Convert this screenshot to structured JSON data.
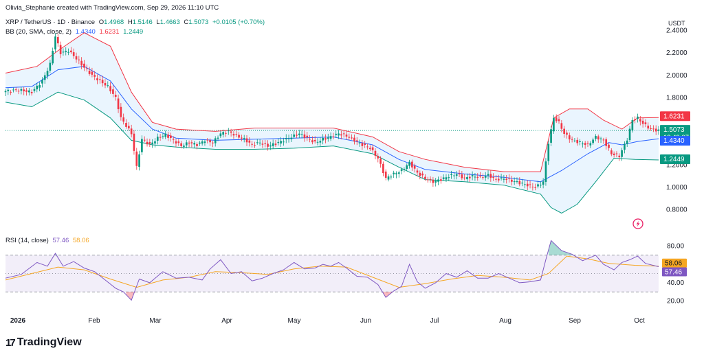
{
  "header": {
    "credit": "Olivia_Stephanie created with TradingView.com, Sep 29, 2026 11:10 UTC",
    "symbol": "XRP / TetherUS · 1D · Binance",
    "o_label": "O",
    "o": "1.4968",
    "h_label": "H",
    "h": "1.5146",
    "l_label": "L",
    "l": "1.4663",
    "c_label": "C",
    "c": "1.5073",
    "change": "+0.0105 (+0.70%)",
    "bb_label": "BB (20, SMA, close, 2)",
    "bb_basis": "1.4340",
    "bb_upper": "1.6231",
    "bb_lower": "1.2449",
    "rsi_label": "RSI (14, close)",
    "rsi_value": "57.46",
    "rsi_ma": "58.06"
  },
  "currency": "USDT",
  "brand": "TradingView",
  "colors": {
    "up": "#089981",
    "down": "#f23645",
    "basis": "#2962ff",
    "upper": "#f23645",
    "lower": "#089981",
    "rsi": "#7e57c2",
    "rsi_ma": "#f5a623"
  },
  "chart_data": [
    {
      "type": "candlestick",
      "title": "XRP / TetherUS · 1D · Binance",
      "ylim": [
        0.62,
        2.55
      ],
      "y_ticks": [
        "2.4000",
        "2.2000",
        "2.0000",
        "1.8000",
        "1.2000",
        "1.0000",
        "0.8000"
      ],
      "x_ticks": [
        "2026",
        "Feb",
        "Mar",
        "Apr",
        "May",
        "Jun",
        "Jul",
        "Aug",
        "Sep",
        "Oct"
      ],
      "price_labels": {
        "upper": "1.6231",
        "close": "1.5073",
        "countdown": "12:49:07",
        "basis": "1.4340",
        "lower": "1.2449"
      },
      "close_path": [
        [
          0,
          1.86
        ],
        [
          5,
          1.87
        ],
        [
          10,
          1.85
        ],
        [
          14,
          1.95
        ],
        [
          17,
          2.1
        ],
        [
          19,
          2.35
        ],
        [
          21,
          2.2
        ],
        [
          24,
          2.22
        ],
        [
          27,
          2.15
        ],
        [
          30,
          2.07
        ],
        [
          33,
          2.0
        ],
        [
          36,
          1.95
        ],
        [
          39,
          1.9
        ],
        [
          42,
          1.8
        ],
        [
          44,
          1.62
        ],
        [
          46,
          1.55
        ],
        [
          48,
          1.48
        ],
        [
          50,
          1.18
        ],
        [
          52,
          1.43
        ],
        [
          55,
          1.38
        ],
        [
          58,
          1.44
        ],
        [
          61,
          1.47
        ],
        [
          64,
          1.42
        ],
        [
          67,
          1.37
        ],
        [
          70,
          1.4
        ],
        [
          73,
          1.38
        ],
        [
          76,
          1.42
        ],
        [
          79,
          1.4
        ],
        [
          82,
          1.48
        ],
        [
          85,
          1.5
        ],
        [
          88,
          1.46
        ],
        [
          91,
          1.43
        ],
        [
          94,
          1.38
        ],
        [
          97,
          1.4
        ],
        [
          100,
          1.37
        ],
        [
          103,
          1.39
        ],
        [
          106,
          1.42
        ],
        [
          109,
          1.45
        ],
        [
          112,
          1.48
        ],
        [
          115,
          1.44
        ],
        [
          118,
          1.4
        ],
        [
          121,
          1.43
        ],
        [
          124,
          1.45
        ],
        [
          127,
          1.48
        ],
        [
          130,
          1.46
        ],
        [
          133,
          1.42
        ],
        [
          136,
          1.38
        ],
        [
          139,
          1.35
        ],
        [
          142,
          1.26
        ],
        [
          145,
          1.08
        ],
        [
          148,
          1.12
        ],
        [
          151,
          1.15
        ],
        [
          154,
          1.22
        ],
        [
          157,
          1.13
        ],
        [
          160,
          1.08
        ],
        [
          163,
          1.05
        ],
        [
          166,
          1.07
        ],
        [
          169,
          1.1
        ],
        [
          172,
          1.12
        ],
        [
          175,
          1.08
        ],
        [
          178,
          1.1
        ],
        [
          181,
          1.09
        ],
        [
          184,
          1.11
        ],
        [
          187,
          1.07
        ],
        [
          190,
          1.08
        ],
        [
          193,
          1.06
        ],
        [
          196,
          1.04
        ],
        [
          199,
          1.02
        ],
        [
          202,
          1.0
        ],
        [
          205,
          1.05
        ],
        [
          207,
          1.4
        ],
        [
          209,
          1.62
        ],
        [
          211,
          1.58
        ],
        [
          213,
          1.48
        ],
        [
          216,
          1.42
        ],
        [
          219,
          1.4
        ],
        [
          222,
          1.38
        ],
        [
          225,
          1.45
        ],
        [
          228,
          1.42
        ],
        [
          231,
          1.3
        ],
        [
          234,
          1.28
        ],
        [
          237,
          1.43
        ],
        [
          239,
          1.6
        ],
        [
          241,
          1.62
        ],
        [
          243,
          1.57
        ],
        [
          246,
          1.52
        ],
        [
          249,
          1.507
        ]
      ],
      "series": [
        {
          "name": "BB upper",
          "values": [
            [
              0,
              2.02
            ],
            [
              12,
              2.08
            ],
            [
              20,
              2.22
            ],
            [
              30,
              2.38
            ],
            [
              40,
              2.26
            ],
            [
              48,
              1.85
            ],
            [
              56,
              1.58
            ],
            [
              65,
              1.52
            ],
            [
              80,
              1.5
            ],
            [
              95,
              1.53
            ],
            [
              110,
              1.53
            ],
            [
              125,
              1.53
            ],
            [
              140,
              1.45
            ],
            [
              150,
              1.32
            ],
            [
              160,
              1.25
            ],
            [
              175,
              1.18
            ],
            [
              190,
              1.14
            ],
            [
              204,
              1.14
            ],
            [
              209,
              1.62
            ],
            [
              215,
              1.7
            ],
            [
              222,
              1.7
            ],
            [
              228,
              1.6
            ],
            [
              235,
              1.52
            ],
            [
              241,
              1.62
            ],
            [
              249,
              1.6231
            ]
          ]
        },
        {
          "name": "BB basis",
          "values": [
            [
              0,
              1.89
            ],
            [
              10,
              1.9
            ],
            [
              20,
              2.05
            ],
            [
              30,
              2.08
            ],
            [
              40,
              1.95
            ],
            [
              48,
              1.7
            ],
            [
              56,
              1.52
            ],
            [
              65,
              1.44
            ],
            [
              80,
              1.42
            ],
            [
              95,
              1.43
            ],
            [
              110,
              1.44
            ],
            [
              125,
              1.45
            ],
            [
              140,
              1.38
            ],
            [
              150,
              1.25
            ],
            [
              160,
              1.16
            ],
            [
              175,
              1.12
            ],
            [
              190,
              1.09
            ],
            [
              204,
              1.05
            ],
            [
              212,
              1.15
            ],
            [
              222,
              1.3
            ],
            [
              230,
              1.4
            ],
            [
              235,
              1.38
            ],
            [
              241,
              1.41
            ],
            [
              249,
              1.434
            ]
          ]
        },
        {
          "name": "BB lower",
          "values": [
            [
              0,
              1.76
            ],
            [
              10,
              1.72
            ],
            [
              20,
              1.85
            ],
            [
              30,
              1.78
            ],
            [
              40,
              1.62
            ],
            [
              48,
              1.42
            ],
            [
              56,
              1.38
            ],
            [
              65,
              1.36
            ],
            [
              80,
              1.34
            ],
            [
              95,
              1.34
            ],
            [
              110,
              1.35
            ],
            [
              125,
              1.37
            ],
            [
              140,
              1.3
            ],
            [
              150,
              1.18
            ],
            [
              160,
              1.07
            ],
            [
              175,
              1.05
            ],
            [
              190,
              1.02
            ],
            [
              204,
              0.94
            ],
            [
              208,
              0.82
            ],
            [
              212,
              0.77
            ],
            [
              218,
              0.85
            ],
            [
              225,
              1.05
            ],
            [
              232,
              1.26
            ],
            [
              240,
              1.25
            ],
            [
              249,
              1.2449
            ]
          ]
        }
      ]
    },
    {
      "type": "line",
      "title": "RSI (14, close)",
      "ylim": [
        10,
        90
      ],
      "y_ticks": [
        "80.00",
        "40.00",
        "20.00"
      ],
      "band": [
        30,
        70
      ],
      "mid": 50,
      "value_labels": {
        "ma": "58.06",
        "rsi": "57.46"
      },
      "series": [
        {
          "name": "RSI",
          "values": [
            [
              0,
              45
            ],
            [
              6,
              49
            ],
            [
              12,
              62
            ],
            [
              16,
              58
            ],
            [
              19,
              72
            ],
            [
              22,
              58
            ],
            [
              26,
              63
            ],
            [
              30,
              56
            ],
            [
              34,
              52
            ],
            [
              38,
              43
            ],
            [
              42,
              34
            ],
            [
              45,
              30
            ],
            [
              48,
              21
            ],
            [
              51,
              44
            ],
            [
              55,
              40
            ],
            [
              60,
              52
            ],
            [
              65,
              45
            ],
            [
              70,
              46
            ],
            [
              75,
              43
            ],
            [
              78,
              55
            ],
            [
              82,
              65
            ],
            [
              86,
              50
            ],
            [
              90,
              52
            ],
            [
              94,
              42
            ],
            [
              98,
              45
            ],
            [
              102,
              50
            ],
            [
              106,
              54
            ],
            [
              110,
              62
            ],
            [
              114,
              55
            ],
            [
              118,
              56
            ],
            [
              121,
              60
            ],
            [
              124,
              58
            ],
            [
              127,
              62
            ],
            [
              130,
              56
            ],
            [
              134,
              47
            ],
            [
              138,
              46
            ],
            [
              142,
              38
            ],
            [
              145,
              24
            ],
            [
              148,
              31
            ],
            [
              151,
              36
            ],
            [
              154,
              60
            ],
            [
              157,
              41
            ],
            [
              160,
              34
            ],
            [
              164,
              40
            ],
            [
              168,
              50
            ],
            [
              172,
              46
            ],
            [
              176,
              53
            ],
            [
              180,
              45
            ],
            [
              184,
              45
            ],
            [
              188,
              50
            ],
            [
              192,
              45
            ],
            [
              196,
              40
            ],
            [
              200,
              41
            ],
            [
              204,
              43
            ],
            [
              206,
              65
            ],
            [
              208,
              86
            ],
            [
              212,
              75
            ],
            [
              216,
              71
            ],
            [
              220,
              64
            ],
            [
              225,
              70
            ],
            [
              228,
              60
            ],
            [
              232,
              54
            ],
            [
              235,
              62
            ],
            [
              238,
              65
            ],
            [
              241,
              69
            ],
            [
              244,
              61
            ],
            [
              249,
              57.46
            ]
          ]
        },
        {
          "name": "RSI MA",
          "values": [
            [
              0,
              43
            ],
            [
              10,
              50
            ],
            [
              20,
              57
            ],
            [
              30,
              54
            ],
            [
              40,
              44
            ],
            [
              50,
              35
            ],
            [
              60,
              43
            ],
            [
              70,
              46
            ],
            [
              80,
              52
            ],
            [
              90,
              51
            ],
            [
              100,
              49
            ],
            [
              110,
              55
            ],
            [
              120,
              58
            ],
            [
              130,
              57
            ],
            [
              140,
              46
            ],
            [
              150,
              35
            ],
            [
              160,
              39
            ],
            [
              170,
              44
            ],
            [
              180,
              48
            ],
            [
              190,
              46
            ],
            [
              200,
              43
            ],
            [
              207,
              50
            ],
            [
              214,
              69
            ],
            [
              222,
              66
            ],
            [
              230,
              61
            ],
            [
              240,
              59
            ],
            [
              249,
              58.06
            ]
          ]
        }
      ]
    }
  ]
}
